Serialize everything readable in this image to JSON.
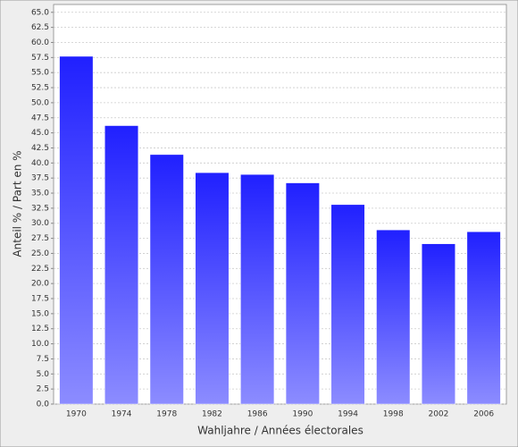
{
  "chart_data": {
    "type": "bar",
    "x_label": "Wahljahre / Années électorales",
    "y_label": "Anteil % / Part en %",
    "categories": [
      "1970",
      "1974",
      "1978",
      "1982",
      "1986",
      "1990",
      "1994",
      "1998",
      "2002",
      "2006"
    ],
    "values": [
      57.7,
      46.2,
      41.4,
      38.4,
      38.1,
      36.7,
      33.1,
      28.9,
      26.6,
      28.6
    ],
    "color": "#2020ff",
    "ylim": [
      0,
      66.3
    ],
    "yticks": [
      {
        "value": 0,
        "label": "0.0"
      },
      2.5,
      {
        "value": 5,
        "label": "5.0"
      },
      7.5,
      {
        "value": 10,
        "label": "10.0"
      },
      12.5,
      {
        "value": 15,
        "label": "15.0"
      },
      17.5,
      {
        "value": 20,
        "label": "20.0"
      },
      22.5,
      {
        "value": 25,
        "label": "25.0"
      },
      27.5,
      {
        "value": 30,
        "label": "30.0"
      },
      32.5,
      {
        "value": 35,
        "label": "35.0"
      },
      37.5,
      {
        "value": 40,
        "label": "40.0"
      },
      42.5,
      {
        "value": 45,
        "label": "45.0"
      },
      47.5,
      {
        "value": 50,
        "label": "50.0"
      },
      52.5,
      {
        "value": 55,
        "label": "55.0"
      },
      57.5,
      {
        "value": 60,
        "label": "60.0"
      },
      62.5,
      {
        "value": 65,
        "label": "65.0"
      }
    ],
    "grid": true
  }
}
